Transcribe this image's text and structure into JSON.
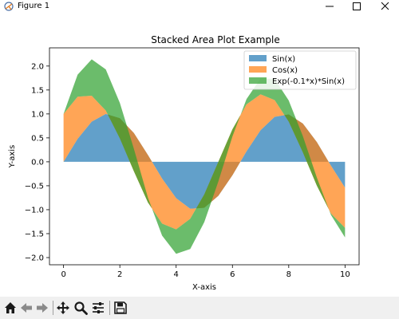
{
  "window": {
    "title": "Figure 1",
    "icons": [
      "matplotlib-icon",
      "minimize-icon",
      "maximize-icon",
      "close-icon"
    ]
  },
  "toolbar": {
    "tools": [
      "home-icon",
      "back-arrow-icon",
      "forward-arrow-icon",
      "pan-icon",
      "zoom-icon",
      "configure-subplots-icon",
      "save-icon"
    ]
  },
  "colors": {
    "sin": "#1f77b4",
    "cos": "#ff7f0e",
    "exp": "#2ca02c"
  },
  "chart_data": {
    "type": "area",
    "title": "Stacked Area Plot Example",
    "xlabel": "X-axis",
    "ylabel": "Y-axis",
    "xlim": [
      -0.5,
      10.5
    ],
    "ylim": [
      -2.15,
      2.38
    ],
    "xticks": [
      "0",
      "2",
      "4",
      "6",
      "8",
      "10"
    ],
    "yticks": [
      "−2.0",
      "−1.5",
      "−1.0",
      "−0.5",
      "0.0",
      "0.5",
      "1.0",
      "1.5",
      "2.0"
    ],
    "grid": false,
    "legend_position": "top-right",
    "x": [
      0,
      0.5,
      1,
      1.5,
      2,
      2.5,
      3,
      3.5,
      4,
      4.5,
      5,
      5.5,
      6,
      6.5,
      7,
      7.5,
      8,
      8.5,
      9,
      9.5,
      10
    ],
    "series": [
      {
        "name": "Sin(x)",
        "values": [
          0,
          0.48,
          0.84,
          1.0,
          0.91,
          0.6,
          0.14,
          -0.35,
          -0.76,
          -0.98,
          -0.96,
          -0.71,
          -0.28,
          0.22,
          0.66,
          0.94,
          0.99,
          0.8,
          0.41,
          -0.08,
          -0.54
        ]
      },
      {
        "name": "Cos(x)",
        "values": [
          1.0,
          0.88,
          0.54,
          0.07,
          -0.42,
          -0.8,
          -0.99,
          -0.94,
          -0.65,
          -0.21,
          0.28,
          0.71,
          0.96,
          0.98,
          0.75,
          0.35,
          -0.15,
          -0.6,
          -0.91,
          -1.0,
          -0.84
        ]
      },
      {
        "name": "Exp(-0.1*x)*Sin(x)",
        "values": [
          0,
          0.46,
          0.76,
          0.86,
          0.74,
          0.47,
          0.1,
          -0.25,
          -0.51,
          -0.63,
          -0.58,
          -0.41,
          -0.15,
          0.11,
          0.33,
          0.44,
          0.44,
          0.34,
          0.17,
          -0.03,
          -0.2
        ]
      }
    ],
    "stacking": [
      {
        "series": "Sin(x)",
        "from": "zero",
        "to": "Sin(x)"
      },
      {
        "series": "Cos(x)",
        "from": "Sin(x)",
        "to": "Sin(x)+Cos(x)"
      },
      {
        "series": "Exp(-0.1*x)*Sin(x)",
        "from": "Sin(x)+Cos(x)",
        "to": "Sin(x)+Cos(x)+Exp(-0.1*x)*Sin(x)"
      }
    ]
  }
}
